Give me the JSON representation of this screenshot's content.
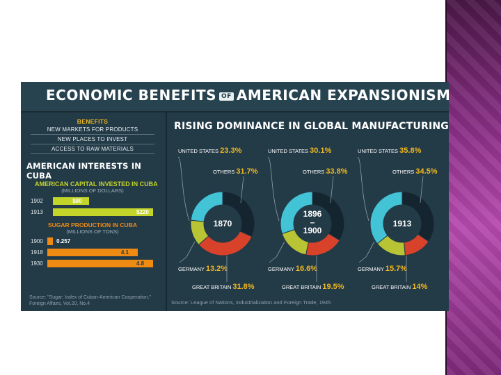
{
  "title_left": "ECONOMIC BENEFITS",
  "title_of": "OF",
  "title_right": "AMERICAN EXPANSIONISM",
  "benefits": {
    "title": "BENEFITS",
    "items": [
      "NEW MARKETS FOR PRODUCTS",
      "NEW PLACES TO INVEST",
      "ACCESS TO RAW MATERIALS"
    ]
  },
  "cuba": {
    "heading": "AMERICAN INTERESTS IN CUBA",
    "capital_title": "AMERICAN CAPITAL INVESTED IN CUBA",
    "capital_units": "(MILLIONS OF DOLLARS)",
    "sugar_title": "SUGAR PRODUCTION IN CUBA",
    "sugar_units": "(MILLIONS OF TONS)",
    "source": "Source: \"Sugar: Index of Cuban-American Cooperation,\" Foreign Affairs, Vol.20, No.4"
  },
  "manufacturing": {
    "heading": "RISING DOMINANCE IN GLOBAL MANUFACTURING",
    "source": "Source: League of Nations, Industrialization and Foreign Trade, 1945"
  },
  "chart_data": [
    {
      "type": "bar",
      "orientation": "horizontal",
      "title": "AMERICAN CAPITAL INVESTED IN CUBA",
      "ylabel": "(MILLIONS OF DOLLARS)",
      "categories": [
        "1902",
        "1913"
      ],
      "values": [
        80,
        220
      ],
      "value_labels": [
        "$80",
        "$220"
      ],
      "color": "#c4d52a"
    },
    {
      "type": "bar",
      "orientation": "horizontal",
      "title": "SUGAR PRODUCTION IN CUBA",
      "ylabel": "(MILLIONS OF TONS)",
      "categories": [
        "1900",
        "1918",
        "1930"
      ],
      "values": [
        0.257,
        4.1,
        4.8
      ],
      "value_labels": [
        "0.257",
        "4.1",
        "4.8"
      ],
      "color": "#ef8a12"
    },
    {
      "type": "pie",
      "title": "RISING DOMINANCE IN GLOBAL MANUFACTURING",
      "charts": [
        {
          "label": "1870",
          "slices": [
            {
              "name": "UNITED STATES",
              "value": 23.3,
              "label": "23.3%",
              "color": "#42c3d6"
            },
            {
              "name": "GERMANY",
              "value": 13.2,
              "label": "13.2%",
              "color": "#b8c434"
            },
            {
              "name": "GREAT BRITAIN",
              "value": 31.8,
              "label": "31.8%",
              "color": "#d9422a"
            },
            {
              "name": "OTHERS",
              "value": 31.7,
              "label": "31.7%",
              "color": "#142530"
            }
          ]
        },
        {
          "label": "1896 – 1900",
          "slices": [
            {
              "name": "UNITED STATES",
              "value": 30.1,
              "label": "30.1%",
              "color": "#42c3d6"
            },
            {
              "name": "GERMANY",
              "value": 16.6,
              "label": "16.6%",
              "color": "#b8c434"
            },
            {
              "name": "GREAT BRITAIN",
              "value": 19.5,
              "label": "19.5%",
              "color": "#d9422a"
            },
            {
              "name": "OTHERS",
              "value": 33.8,
              "label": "33.8%",
              "color": "#142530"
            }
          ]
        },
        {
          "label": "1913",
          "slices": [
            {
              "name": "UNITED STATES",
              "value": 35.8,
              "label": "35.8%",
              "color": "#42c3d6"
            },
            {
              "name": "GERMANY",
              "value": 15.7,
              "label": "15.7%",
              "color": "#b8c434"
            },
            {
              "name": "GREAT BRITAIN",
              "value": 14,
              "label": "14%",
              "color": "#d9422a"
            },
            {
              "name": "OTHERS",
              "value": 34.5,
              "label": "34.5%",
              "color": "#142530"
            }
          ]
        }
      ]
    }
  ]
}
